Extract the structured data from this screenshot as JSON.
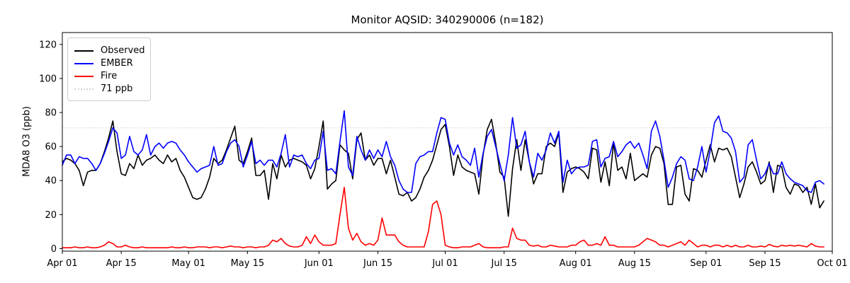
{
  "chart_data": {
    "type": "line",
    "title": "Monitor AQSID: 340290006 (n=182)",
    "ylabel": "MDA8 O3 (ppb)",
    "xlabel": "",
    "ylim": [
      -1.5,
      127
    ],
    "yticks": [
      0,
      20,
      40,
      60,
      80,
      100,
      120
    ],
    "x_tick_labels": [
      "Apr 01",
      "Apr 15",
      "May 01",
      "May 15",
      "Jun 01",
      "Jun 15",
      "Jul 01",
      "Jul 15",
      "Aug 01",
      "Aug 15",
      "Sep 01",
      "Sep 15",
      "Oct 01"
    ],
    "x_tick_days": [
      0,
      14,
      30,
      44,
      61,
      75,
      91,
      105,
      122,
      136,
      153,
      167,
      183
    ],
    "x_total_days": 183,
    "n_points": 182,
    "grid": false,
    "legend_position": "upper-left",
    "reference_line": {
      "value": 71,
      "label": "71 ppb",
      "color": "#d3d3d3",
      "style": "dotted"
    },
    "series": [
      {
        "name": "Observed",
        "color": "#000000",
        "values": [
          51,
          53,
          52,
          50,
          46,
          37,
          45,
          46,
          46,
          50,
          57,
          65,
          75,
          57,
          44,
          43,
          50,
          47,
          55,
          49,
          52,
          53,
          55,
          52,
          50,
          55,
          51,
          53,
          46,
          42,
          36,
          30,
          29,
          30,
          35,
          42,
          53,
          50,
          52,
          58,
          65,
          72,
          52,
          50,
          57,
          65,
          43,
          43,
          46,
          29,
          50,
          41,
          55,
          48,
          52,
          53,
          52,
          51,
          49,
          41,
          47,
          60,
          75,
          35,
          38,
          40,
          61,
          58,
          56,
          41,
          64,
          68,
          52,
          55,
          49,
          53,
          53,
          44,
          52,
          42,
          32,
          31,
          33,
          28,
          30,
          35,
          42,
          46,
          52,
          61,
          70,
          73,
          60,
          43,
          55,
          48,
          46,
          45,
          44,
          32,
          55,
          70,
          76,
          62,
          45,
          42,
          19,
          47,
          64,
          46,
          64,
          51,
          38,
          44,
          44,
          60,
          62,
          60,
          68,
          33,
          45,
          47,
          48,
          47,
          45,
          41,
          59,
          58,
          39,
          51,
          37,
          62,
          46,
          48,
          41,
          56,
          40,
          42,
          44,
          42,
          55,
          60,
          59,
          50,
          26,
          26,
          48,
          49,
          32,
          28,
          47,
          46,
          42,
          52,
          61,
          51,
          59,
          58,
          59,
          54,
          42,
          30,
          38,
          48,
          51,
          45,
          38,
          40,
          51,
          33,
          49,
          48,
          36,
          32,
          38,
          37,
          33,
          36,
          26,
          38,
          24,
          28
        ]
      },
      {
        "name": "EMBER",
        "color": "#0000ff",
        "values": [
          49,
          55,
          55,
          50,
          54,
          53,
          53,
          50,
          46,
          50,
          56,
          63,
          71,
          68,
          53,
          55,
          66,
          57,
          55,
          58,
          67,
          55,
          60,
          62,
          59,
          62,
          63,
          62,
          58,
          55,
          51,
          48,
          45,
          47,
          48,
          49,
          60,
          49,
          50,
          57,
          62,
          64,
          60,
          48,
          55,
          63,
          50,
          52,
          49,
          52,
          52,
          48,
          56,
          67,
          48,
          55,
          54,
          55,
          50,
          47,
          52,
          53,
          69,
          46,
          47,
          44,
          63,
          81,
          48,
          43,
          66,
          58,
          52,
          58,
          53,
          58,
          54,
          63,
          54,
          49,
          40,
          35,
          33,
          33,
          50,
          54,
          55,
          57,
          57,
          68,
          77,
          76,
          62,
          55,
          61,
          54,
          52,
          49,
          59,
          42,
          56,
          66,
          70,
          60,
          50,
          40,
          55,
          77,
          59,
          61,
          69,
          51,
          42,
          56,
          52,
          58,
          68,
          62,
          69,
          39,
          52,
          44,
          47,
          48,
          48,
          49,
          63,
          64,
          48,
          53,
          54,
          63,
          54,
          57,
          61,
          63,
          59,
          62,
          55,
          47,
          69,
          75,
          66,
          52,
          36,
          42,
          50,
          54,
          52,
          41,
          40,
          48,
          60,
          45,
          58,
          74,
          78,
          69,
          68,
          65,
          57,
          39,
          42,
          61,
          64,
          52,
          41,
          44,
          50,
          44,
          44,
          51,
          44,
          41,
          39,
          38,
          37,
          34,
          33,
          39,
          40,
          38
        ]
      },
      {
        "name": "Fire",
        "color": "#ff0000",
        "values": [
          0.5,
          0.5,
          0.5,
          1,
          0.5,
          0.5,
          1,
          0.5,
          0.5,
          1,
          2,
          4,
          3,
          1,
          1,
          2,
          1,
          0.5,
          0.5,
          1,
          0.5,
          0.5,
          0.5,
          0.5,
          0.5,
          0.5,
          1,
          0.5,
          0.5,
          1,
          0.5,
          0.5,
          1,
          1,
          1,
          0.5,
          1,
          1,
          0.5,
          1,
          1.5,
          1,
          1,
          0.5,
          1,
          1,
          0.5,
          1,
          1,
          2,
          5,
          4,
          6,
          3,
          1.5,
          1,
          1,
          2,
          7,
          3,
          8,
          4,
          2,
          2,
          2,
          3,
          20,
          36,
          12,
          5,
          9,
          4,
          2,
          3,
          2,
          5,
          18,
          8,
          8,
          8,
          4,
          2,
          1,
          1,
          1,
          1,
          1,
          10,
          26,
          28,
          20,
          2,
          1,
          0.5,
          0.5,
          1,
          1,
          1,
          2,
          3,
          1,
          0.5,
          0.5,
          0.5,
          0.5,
          1,
          1,
          12,
          6,
          5,
          5,
          2,
          1.5,
          2,
          1,
          1,
          2,
          1.5,
          1,
          1,
          1,
          2,
          2,
          4,
          5,
          2,
          2,
          3,
          2,
          7,
          2,
          2,
          1,
          1,
          1,
          1,
          1,
          2,
          4,
          6,
          5,
          4,
          2,
          2,
          1,
          2,
          3,
          4,
          2,
          5,
          3,
          1,
          2,
          2,
          1,
          2,
          2,
          1,
          2,
          1,
          2,
          1,
          1,
          2,
          1,
          1,
          1.5,
          1,
          2.5,
          1.5,
          1,
          2,
          1.5,
          2,
          1.5,
          2,
          1.5,
          1,
          3,
          1.5,
          1,
          1
        ]
      }
    ]
  }
}
